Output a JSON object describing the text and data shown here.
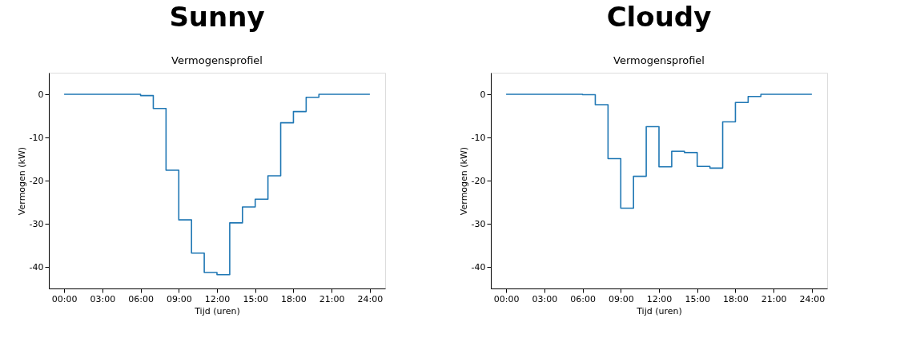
{
  "chart_data": [
    {
      "type": "step",
      "title": "Sunny",
      "subtitle": "Vermogensprofiel",
      "xlabel": "Tijd (uren)",
      "ylabel": "Vermogen (kW)",
      "x": [
        0,
        1,
        2,
        3,
        4,
        5,
        6,
        7,
        8,
        9,
        10,
        11,
        12,
        13,
        14,
        15,
        16,
        17,
        18,
        19,
        20,
        21,
        22,
        23,
        24
      ],
      "series": [
        {
          "color": "#1f77b4",
          "values": [
            0,
            0,
            0,
            0,
            0,
            0,
            -0.3,
            -3.3,
            -17.6,
            -29.1,
            -36.8,
            -41.3,
            -41.8,
            -29.8,
            -26.1,
            -24.3,
            -18.9,
            -6.6,
            -4.0,
            -0.7,
            0,
            0,
            0,
            0,
            0
          ]
        }
      ],
      "xlim": [
        -1.2,
        25.2
      ],
      "ylim": [
        -45,
        5
      ],
      "xticks": [
        {
          "value": 0,
          "label": "00:00"
        },
        {
          "value": 3,
          "label": "03:00"
        },
        {
          "value": 6,
          "label": "06:00"
        },
        {
          "value": 9,
          "label": "09:00"
        },
        {
          "value": 12,
          "label": "12:00"
        },
        {
          "value": 15,
          "label": "15:00"
        },
        {
          "value": 18,
          "label": "18:00"
        },
        {
          "value": 21,
          "label": "21:00"
        },
        {
          "value": 24,
          "label": "24:00"
        }
      ],
      "yticks": [
        0,
        -10,
        -20,
        -30,
        -40
      ],
      "grid": false
    },
    {
      "type": "step",
      "title": "Cloudy",
      "subtitle": "Vermogensprofiel",
      "xlabel": "Tijd (uren)",
      "ylabel": "Vermogen (kW)",
      "x": [
        0,
        1,
        2,
        3,
        4,
        5,
        6,
        7,
        8,
        9,
        10,
        11,
        12,
        13,
        14,
        15,
        16,
        17,
        18,
        19,
        20,
        21,
        22,
        23,
        24
      ],
      "series": [
        {
          "color": "#1f77b4",
          "values": [
            0,
            0,
            0,
            0,
            0,
            0,
            -0.1,
            -2.4,
            -14.9,
            -26.4,
            -19.0,
            -7.5,
            -16.8,
            -13.2,
            -13.5,
            -16.7,
            -17.1,
            -6.4,
            -1.9,
            -0.5,
            0,
            0,
            0,
            0,
            0
          ]
        }
      ],
      "xlim": [
        -1.2,
        25.2
      ],
      "ylim": [
        -45,
        5
      ],
      "xticks": [
        {
          "value": 0,
          "label": "00:00"
        },
        {
          "value": 3,
          "label": "03:00"
        },
        {
          "value": 6,
          "label": "06:00"
        },
        {
          "value": 9,
          "label": "09:00"
        },
        {
          "value": 12,
          "label": "12:00"
        },
        {
          "value": 15,
          "label": "15:00"
        },
        {
          "value": 18,
          "label": "18:00"
        },
        {
          "value": 21,
          "label": "21:00"
        },
        {
          "value": 24,
          "label": "24:00"
        }
      ],
      "yticks": [
        0,
        -10,
        -20,
        -30,
        -40
      ],
      "grid": false
    }
  ]
}
